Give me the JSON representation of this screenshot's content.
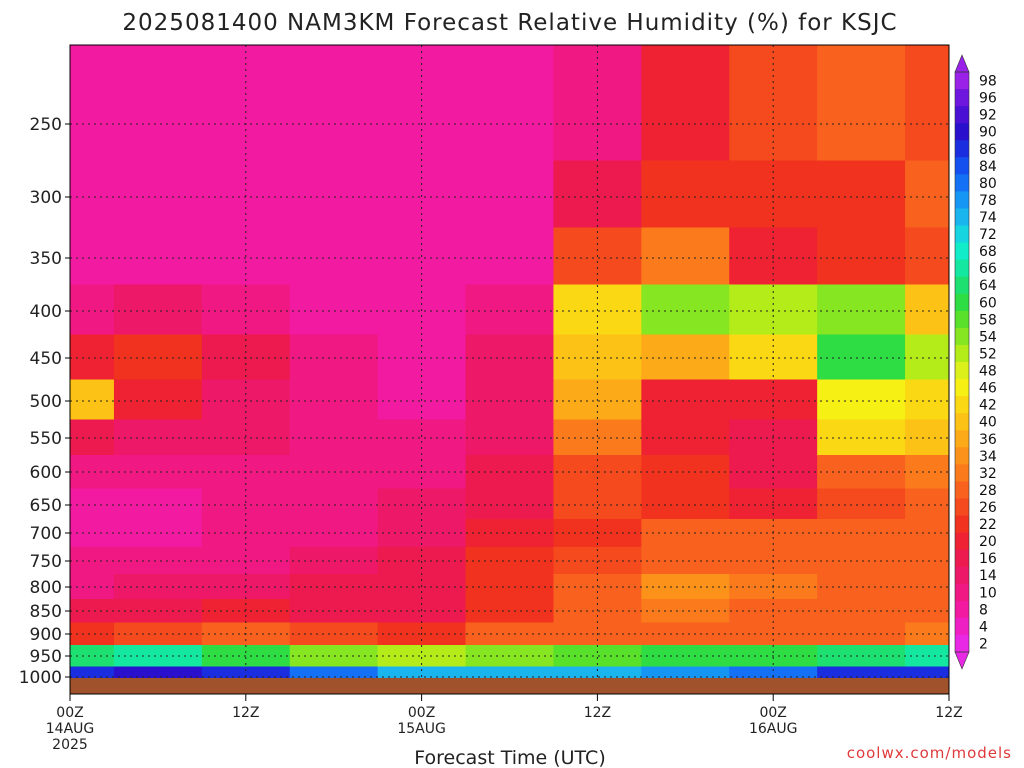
{
  "chart_data": {
    "type": "heatmap",
    "title": "2025081400 NAM3KM Forecast Relative Humidity (%) for KSJC",
    "xlabel": "Forecast Time (UTC)",
    "ylabel": "",
    "x_ticks": [
      {
        "hour": 0,
        "lines": [
          "00Z",
          "14AUG",
          "2025"
        ]
      },
      {
        "hour": 12,
        "lines": [
          "12Z"
        ]
      },
      {
        "hour": 24,
        "lines": [
          "00Z",
          "15AUG"
        ]
      },
      {
        "hour": 36,
        "lines": [
          "12Z"
        ]
      },
      {
        "hour": 48,
        "lines": [
          "00Z",
          "16AUG"
        ]
      },
      {
        "hour": 60,
        "lines": [
          "12Z"
        ]
      }
    ],
    "y_ticks": [
      "250",
      "300",
      "350",
      "400",
      "450",
      "500",
      "550",
      "600",
      "650",
      "700",
      "750",
      "800",
      "850",
      "900",
      "950",
      "1000"
    ],
    "x_range": [
      0,
      60
    ],
    "grid": true,
    "colorbar": {
      "labels": [
        "98",
        "96",
        "92",
        "90",
        "86",
        "84",
        "80",
        "78",
        "74",
        "72",
        "68",
        "66",
        "64",
        "60",
        "58",
        "54",
        "52",
        "48",
        "46",
        "42",
        "40",
        "36",
        "34",
        "32",
        "28",
        "26",
        "22",
        "20",
        "16",
        "14",
        "10",
        "8",
        "4",
        "2"
      ],
      "colors": [
        "#9a22e8",
        "#6e16de",
        "#4a10d4",
        "#2a10cc",
        "#1a2ee0",
        "#1450f0",
        "#1470f4",
        "#1696f4",
        "#1ab4ee",
        "#16d4e0",
        "#12ecc8",
        "#14e8a0",
        "#1ee070",
        "#2edc44",
        "#58e02a",
        "#86e622",
        "#b4ec1a",
        "#dcf01c",
        "#f6f014",
        "#fad814",
        "#fcc216",
        "#fcaa18",
        "#fc921a",
        "#fa7a1c",
        "#f8621e",
        "#f44a1e",
        "#f0321e",
        "#ee2232",
        "#ec1a4e",
        "#ee1868",
        "#f01882",
        "#f21aa0",
        "#ee20c4",
        "#e828e4"
      ]
    },
    "rh_pct": {
      "x_hours": [
        0,
        6,
        12,
        18,
        24,
        30,
        36,
        42,
        48,
        54,
        60
      ],
      "levels": [
        250,
        300,
        350,
        400,
        450,
        500,
        550,
        600,
        650,
        700,
        750,
        800,
        850,
        900,
        950,
        1000
      ],
      "values": [
        [
          8,
          8,
          8,
          8,
          8,
          8,
          10,
          20,
          26,
          28,
          26
        ],
        [
          8,
          8,
          8,
          8,
          8,
          8,
          16,
          22,
          22,
          24,
          28
        ],
        [
          8,
          8,
          8,
          8,
          8,
          8,
          26,
          32,
          20,
          22,
          26
        ],
        [
          10,
          14,
          12,
          8,
          8,
          10,
          42,
          54,
          52,
          54,
          40
        ],
        [
          20,
          22,
          16,
          10,
          8,
          14,
          40,
          38,
          44,
          60,
          52
        ],
        [
          40,
          20,
          14,
          10,
          8,
          14,
          36,
          20,
          20,
          46,
          42
        ],
        [
          16,
          14,
          14,
          10,
          10,
          14,
          32,
          20,
          18,
          44,
          40
        ],
        [
          10,
          10,
          10,
          10,
          12,
          16,
          26,
          22,
          18,
          30,
          32
        ],
        [
          8,
          8,
          10,
          12,
          14,
          18,
          26,
          24,
          20,
          26,
          28
        ],
        [
          8,
          8,
          10,
          12,
          14,
          20,
          24,
          28,
          28,
          28,
          30
        ],
        [
          10,
          10,
          12,
          14,
          16,
          22,
          26,
          30,
          30,
          28,
          30
        ],
        [
          12,
          14,
          14,
          16,
          18,
          22,
          28,
          34,
          32,
          30,
          30
        ],
        [
          16,
          18,
          20,
          18,
          18,
          22,
          28,
          32,
          30,
          28,
          28
        ],
        [
          24,
          26,
          28,
          26,
          22,
          28,
          30,
          30,
          30,
          30,
          32
        ],
        [
          64,
          66,
          60,
          56,
          52,
          54,
          58,
          60,
          62,
          64,
          66
        ],
        [
          86,
          90,
          88,
          80,
          74,
          74,
          76,
          78,
          82,
          86,
          88
        ]
      ]
    }
  },
  "credit": "coolwx.com/models"
}
